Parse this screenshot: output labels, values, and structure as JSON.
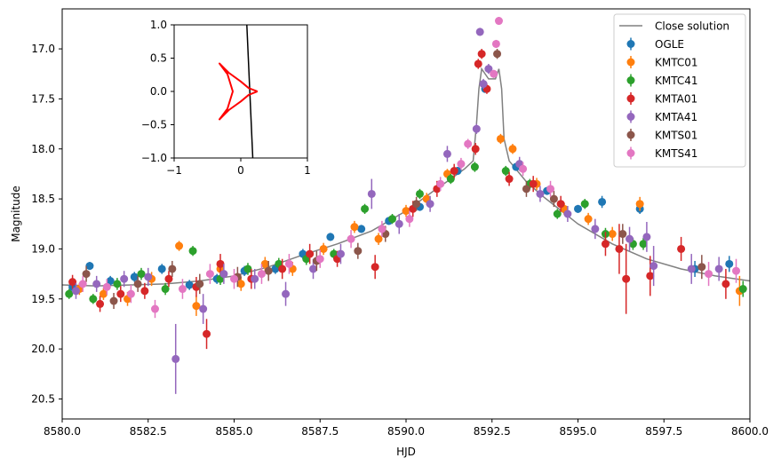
{
  "chart_data": [
    {
      "type": "scatter",
      "title": "",
      "xlabel": "HJD",
      "ylabel": "Magnitude",
      "xlim": [
        8580.0,
        8600.0
      ],
      "ylim": [
        20.7,
        16.6
      ],
      "y_inverted": true,
      "xticks": [
        "8580.0",
        "8582.5",
        "8585.0",
        "8587.5",
        "8590.0",
        "8592.5",
        "8595.0",
        "8597.5",
        "8600.0"
      ],
      "yticks": [
        "17.0",
        "17.5",
        "18.0",
        "18.5",
        "19.0",
        "19.5",
        "20.0",
        "20.5"
      ],
      "legend_position": "top-right",
      "legend": [
        "Close solution",
        "OGLE",
        "KMTC01",
        "KMTC41",
        "KMTA01",
        "KMTA41",
        "KMTS01",
        "KMTS41"
      ],
      "model": {
        "name": "Close solution",
        "color": "#808080",
        "x": [
          8580.0,
          8581.0,
          8582.0,
          8583.0,
          8584.0,
          8585.0,
          8586.0,
          8587.0,
          8588.0,
          8589.0,
          8590.0,
          8590.8,
          8591.3,
          8591.7,
          8591.95,
          8592.05,
          8592.12,
          8592.2,
          8592.4,
          8592.6,
          8592.7,
          8592.78,
          8592.85,
          8593.0,
          8593.5,
          8594.0,
          8595.0,
          8596.0,
          8597.0,
          8598.0,
          8599.0,
          8600.0
        ],
        "y": [
          19.36,
          19.37,
          19.36,
          19.35,
          19.32,
          19.27,
          19.18,
          19.06,
          18.95,
          18.82,
          18.62,
          18.42,
          18.3,
          18.2,
          18.12,
          17.75,
          17.4,
          17.2,
          17.3,
          17.3,
          17.2,
          17.4,
          17.9,
          18.12,
          18.33,
          18.48,
          18.75,
          18.95,
          19.1,
          19.2,
          19.27,
          19.32
        ]
      },
      "series": [
        {
          "name": "OGLE",
          "color": "#1f77b4",
          "marker": "circle",
          "x": [
            8580.3,
            8580.8,
            8581.4,
            8582.1,
            8582.9,
            8583.7,
            8584.5,
            8585.3,
            8586.2,
            8587.0,
            8587.8,
            8588.7,
            8589.5,
            8590.4,
            8591.5,
            8592.3,
            8593.2,
            8594.1,
            8595.0,
            8595.7,
            8596.8,
            8598.4,
            8599.4
          ],
          "y": [
            19.38,
            19.17,
            19.32,
            19.28,
            19.2,
            19.36,
            19.3,
            19.22,
            19.2,
            19.05,
            18.88,
            18.8,
            18.72,
            18.58,
            18.22,
            17.4,
            18.18,
            18.42,
            18.6,
            18.53,
            18.6,
            19.2,
            19.15
          ],
          "err": [
            0.04,
            0.04,
            0.05,
            0.05,
            0.05,
            0.05,
            0.05,
            0.05,
            0.05,
            0.05,
            0.04,
            0.04,
            0.04,
            0.04,
            0.04,
            0.04,
            0.04,
            0.04,
            0.04,
            0.06,
            0.05,
            0.08,
            0.08
          ]
        },
        {
          "name": "KMTC01",
          "color": "#ff7f0e",
          "marker": "circle",
          "x": [
            8580.5,
            8581.2,
            8581.9,
            8582.6,
            8583.4,
            8583.9,
            8584.6,
            8585.2,
            8585.9,
            8586.7,
            8587.6,
            8588.5,
            8589.2,
            8590.0,
            8590.6,
            8591.2,
            8592.75,
            8593.1,
            8593.8,
            8594.6,
            8595.3,
            8596.0,
            8596.8,
            8599.7
          ],
          "y": [
            19.4,
            19.45,
            19.5,
            19.3,
            18.97,
            19.57,
            19.2,
            19.35,
            19.15,
            19.2,
            19.0,
            18.78,
            18.9,
            18.62,
            18.5,
            18.25,
            17.9,
            18.0,
            18.35,
            18.6,
            18.7,
            18.85,
            18.55,
            19.42
          ],
          "err": [
            0.06,
            0.06,
            0.07,
            0.07,
            0.05,
            0.1,
            0.07,
            0.07,
            0.07,
            0.07,
            0.06,
            0.06,
            0.06,
            0.06,
            0.06,
            0.05,
            0.05,
            0.05,
            0.06,
            0.06,
            0.06,
            0.07,
            0.07,
            0.15
          ]
        },
        {
          "name": "KMTC41",
          "color": "#2ca02c",
          "marker": "circle",
          "x": [
            8580.2,
            8580.9,
            8581.6,
            8582.3,
            8583.0,
            8583.8,
            8584.6,
            8585.4,
            8586.3,
            8587.1,
            8587.9,
            8588.8,
            8589.6,
            8590.4,
            8591.3,
            8592.0,
            8592.9,
            8593.6,
            8594.4,
            8595.2,
            8595.8,
            8596.6,
            8596.9,
            8599.8
          ],
          "y": [
            19.45,
            19.5,
            19.35,
            19.25,
            19.4,
            19.02,
            19.3,
            19.2,
            19.15,
            19.1,
            19.05,
            18.6,
            18.7,
            18.45,
            18.3,
            18.18,
            18.22,
            18.35,
            18.65,
            18.55,
            18.85,
            18.95,
            18.95,
            19.4
          ],
          "err": [
            0.05,
            0.05,
            0.06,
            0.06,
            0.06,
            0.05,
            0.06,
            0.06,
            0.06,
            0.06,
            0.05,
            0.05,
            0.05,
            0.05,
            0.05,
            0.05,
            0.05,
            0.05,
            0.05,
            0.05,
            0.06,
            0.06,
            0.06,
            0.08
          ]
        },
        {
          "name": "KMTA01",
          "color": "#d62728",
          "marker": "circle",
          "x": [
            8580.3,
            8581.1,
            8581.7,
            8582.4,
            8583.1,
            8583.9,
            8584.2,
            8584.6,
            8585.5,
            8586.4,
            8587.2,
            8588.0,
            8589.1,
            8590.2,
            8590.9,
            8591.4,
            8592.02,
            8592.1,
            8592.2,
            8592.35,
            8593.0,
            8593.7,
            8594.5,
            8595.8,
            8596.2,
            8596.4,
            8597.1,
            8598.0,
            8599.3
          ],
          "y": [
            19.33,
            19.55,
            19.45,
            19.42,
            19.3,
            19.38,
            19.85,
            19.15,
            19.3,
            19.2,
            19.05,
            19.1,
            19.18,
            18.6,
            18.4,
            18.22,
            18.0,
            17.15,
            17.05,
            17.4,
            18.3,
            18.35,
            18.55,
            18.95,
            19.0,
            19.3,
            19.27,
            19.0,
            19.35
          ],
          "err": [
            0.07,
            0.08,
            0.08,
            0.08,
            0.08,
            0.1,
            0.15,
            0.1,
            0.1,
            0.1,
            0.1,
            0.08,
            0.12,
            0.08,
            0.08,
            0.07,
            0.06,
            0.05,
            0.05,
            0.05,
            0.07,
            0.08,
            0.08,
            0.12,
            0.25,
            0.35,
            0.2,
            0.12,
            0.15
          ]
        },
        {
          "name": "KMTA41",
          "color": "#9467bd",
          "marker": "circle",
          "x": [
            8580.4,
            8581.0,
            8581.8,
            8582.5,
            8583.3,
            8584.1,
            8584.7,
            8585.6,
            8586.5,
            8587.3,
            8588.1,
            8589.0,
            8589.8,
            8590.7,
            8591.2,
            8592.05,
            8592.15,
            8592.25,
            8592.4,
            8593.3,
            8593.9,
            8594.7,
            8595.5,
            8596.5,
            8597.0,
            8597.2,
            8598.3,
            8599.1
          ],
          "y": [
            19.42,
            19.35,
            19.3,
            19.28,
            20.1,
            19.6,
            19.25,
            19.3,
            19.45,
            19.2,
            19.05,
            18.45,
            18.75,
            18.55,
            18.05,
            17.8,
            16.83,
            17.35,
            17.2,
            18.15,
            18.45,
            18.65,
            18.8,
            18.9,
            18.88,
            19.17,
            19.2,
            19.2
          ],
          "err": [
            0.08,
            0.08,
            0.08,
            0.09,
            0.35,
            0.15,
            0.1,
            0.1,
            0.12,
            0.1,
            0.1,
            0.15,
            0.1,
            0.08,
            0.08,
            0.05,
            0.04,
            0.05,
            0.05,
            0.07,
            0.08,
            0.08,
            0.1,
            0.12,
            0.15,
            0.2,
            0.15,
            0.12
          ]
        },
        {
          "name": "KMTS01",
          "color": "#8c564b",
          "marker": "circle",
          "x": [
            8580.7,
            8581.5,
            8582.2,
            8583.2,
            8584.0,
            8585.1,
            8586.0,
            8587.4,
            8588.6,
            8589.4,
            8590.3,
            8592.65,
            8593.5,
            8594.3,
            8596.3,
            8598.6
          ],
          "y": [
            19.25,
            19.52,
            19.35,
            19.2,
            19.35,
            19.28,
            19.22,
            19.12,
            19.02,
            18.85,
            18.55,
            17.05,
            18.4,
            18.5,
            18.85,
            19.18
          ],
          "err": [
            0.08,
            0.08,
            0.08,
            0.08,
            0.1,
            0.1,
            0.1,
            0.1,
            0.08,
            0.08,
            0.07,
            0.05,
            0.08,
            0.08,
            0.1,
            0.12
          ]
        },
        {
          "name": "KMTS41",
          "color": "#e377c2",
          "marker": "circle",
          "x": [
            8580.6,
            8581.3,
            8582.0,
            8582.7,
            8583.5,
            8584.3,
            8585.0,
            8585.8,
            8586.6,
            8587.5,
            8588.4,
            8589.3,
            8590.1,
            8591.0,
            8591.6,
            8591.8,
            8592.55,
            8592.62,
            8592.7,
            8593.4,
            8594.2,
            8598.8,
            8599.6
          ],
          "y": [
            19.35,
            19.38,
            19.45,
            19.6,
            19.4,
            19.25,
            19.3,
            19.25,
            19.15,
            19.1,
            18.9,
            18.8,
            18.7,
            18.35,
            18.15,
            17.95,
            17.25,
            16.95,
            16.72,
            18.2,
            18.4,
            19.25,
            19.22
          ],
          "err": [
            0.08,
            0.08,
            0.09,
            0.09,
            0.1,
            0.1,
            0.1,
            0.1,
            0.1,
            0.09,
            0.09,
            0.08,
            0.08,
            0.07,
            0.06,
            0.05,
            0.04,
            0.04,
            0.04,
            0.07,
            0.08,
            0.12,
            0.12
          ]
        }
      ]
    },
    {
      "type": "line",
      "title": "",
      "xlabel": "",
      "ylabel": "",
      "xlim": [
        -1,
        1
      ],
      "ylim": [
        -1,
        1
      ],
      "xticks": [
        "−1",
        "0",
        "1"
      ],
      "yticks": [
        "−1.0",
        "−0.5",
        "0.0",
        "0.5",
        "1.0"
      ],
      "series": [
        {
          "name": "trajectory",
          "color": "#000000",
          "x": [
            0.09,
            0.18
          ],
          "y": [
            1.0,
            -1.0
          ]
        },
        {
          "name": "caustic",
          "color": "#ff0000",
          "x": [
            0.25,
            0.12,
            0.0,
            -0.18,
            -0.32,
            -0.2,
            -0.12,
            -0.2,
            -0.32,
            -0.18,
            0.0,
            0.12,
            0.25
          ],
          "y": [
            0.0,
            0.05,
            0.15,
            0.28,
            0.42,
            0.26,
            0.0,
            -0.26,
            -0.42,
            -0.28,
            -0.15,
            -0.05,
            0.0
          ]
        }
      ]
    }
  ]
}
